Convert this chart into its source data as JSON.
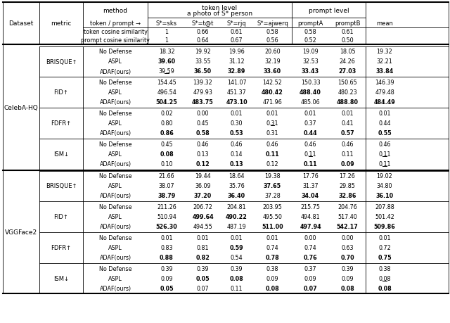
{
  "datasets": [
    {
      "name": "CelebA-HQ",
      "metrics": [
        {
          "name": "BRISQUE↑",
          "rows": [
            {
              "method": "No Defense",
              "values": [
                "18.32",
                "19.92",
                "19.96",
                "20.60",
                "19.09",
                "18.05",
                "19.32"
              ],
              "bold_idx": [],
              "underline_idx": []
            },
            {
              "method": "ASPL",
              "values": [
                "39.60",
                "33.55",
                "31.12",
                "32.19",
                "32.53",
                "24.26",
                "32.21"
              ],
              "bold_idx": [
                0
              ],
              "underline_idx": []
            },
            {
              "method": "ADAF(ours)",
              "values": [
                "39.59",
                "36.50",
                "32.89",
                "33.60",
                "33.43",
                "27.03",
                "33.84"
              ],
              "bold_idx": [
                1,
                2,
                3,
                4,
                5,
                6
              ],
              "underline_idx": [
                0
              ]
            }
          ]
        },
        {
          "name": "FID↑",
          "rows": [
            {
              "method": "No Defense",
              "values": [
                "154.45",
                "139.32",
                "141.07",
                "142.52",
                "150.33",
                "150.65",
                "146.39"
              ],
              "bold_idx": [],
              "underline_idx": []
            },
            {
              "method": "ASPL",
              "values": [
                "496.54",
                "479.93",
                "451.37",
                "480.42",
                "488.40",
                "480.23",
                "479.48"
              ],
              "bold_idx": [
                3,
                4
              ],
              "underline_idx": []
            },
            {
              "method": "ADAF(ours)",
              "values": [
                "504.25",
                "483.75",
                "473.10",
                "471.96",
                "485.06",
                "488.80",
                "484.49"
              ],
              "bold_idx": [
                0,
                1,
                2,
                5,
                6
              ],
              "underline_idx": []
            }
          ]
        },
        {
          "name": "FDFR↑",
          "rows": [
            {
              "method": "No Defense",
              "values": [
                "0.02",
                "0.00",
                "0.01",
                "0.01",
                "0.01",
                "0.01",
                "0.01"
              ],
              "bold_idx": [],
              "underline_idx": []
            },
            {
              "method": "ASPL",
              "values": [
                "0.80",
                "0.45",
                "0.30",
                "0.31",
                "0.37",
                "0.41",
                "0.44"
              ],
              "bold_idx": [],
              "underline_idx": [
                3
              ]
            },
            {
              "method": "ADAF(ours)",
              "values": [
                "0.86",
                "0.58",
                "0.53",
                "0.31",
                "0.44",
                "0.57",
                "0.55"
              ],
              "bold_idx": [
                0,
                1,
                2,
                4,
                5,
                6
              ],
              "underline_idx": []
            }
          ]
        },
        {
          "name": "ISM↓",
          "rows": [
            {
              "method": "No Defense",
              "values": [
                "0.45",
                "0.46",
                "0.46",
                "0.46",
                "0.46",
                "0.46",
                "0.46"
              ],
              "bold_idx": [],
              "underline_idx": []
            },
            {
              "method": "ASPL",
              "values": [
                "0.08",
                "0.13",
                "0.14",
                "0.11",
                "0.11",
                "0.11",
                "0.11"
              ],
              "bold_idx": [
                0,
                3
              ],
              "underline_idx": [
                4,
                6
              ]
            },
            {
              "method": "ADAF(ours)",
              "values": [
                "0.10",
                "0.12",
                "0.13",
                "0.12",
                "0.11",
                "0.09",
                "0.11"
              ],
              "bold_idx": [
                1,
                2,
                4,
                5
              ],
              "underline_idx": [
                6
              ]
            }
          ]
        }
      ]
    },
    {
      "name": "VGGFace2",
      "metrics": [
        {
          "name": "BRISQUE↑",
          "rows": [
            {
              "method": "No Defense",
              "values": [
                "21.66",
                "19.44",
                "18.64",
                "19.38",
                "17.76",
                "17.26",
                "19.02"
              ],
              "bold_idx": [],
              "underline_idx": []
            },
            {
              "method": "ASPL",
              "values": [
                "38.07",
                "36.09",
                "35.76",
                "37.65",
                "31.37",
                "29.85",
                "34.80"
              ],
              "bold_idx": [
                3
              ],
              "underline_idx": []
            },
            {
              "method": "ADAF(ours)",
              "values": [
                "38.79",
                "37.20",
                "36.40",
                "37.28",
                "34.04",
                "32.86",
                "36.10"
              ],
              "bold_idx": [
                0,
                1,
                2,
                4,
                5,
                6
              ],
              "underline_idx": []
            }
          ]
        },
        {
          "name": "FID↑",
          "rows": [
            {
              "method": "No Defense",
              "values": [
                "211.26",
                "206.72",
                "204.81",
                "203.95",
                "215.75",
                "204.76",
                "207.88"
              ],
              "bold_idx": [],
              "underline_idx": []
            },
            {
              "method": "ASPL",
              "values": [
                "510.94",
                "499.64",
                "490.22",
                "495.50",
                "494.81",
                "517.40",
                "501.42"
              ],
              "bold_idx": [
                1,
                2
              ],
              "underline_idx": []
            },
            {
              "method": "ADAF(ours)",
              "values": [
                "526.30",
                "494.55",
                "487.19",
                "511.00",
                "497.94",
                "542.17",
                "509.86"
              ],
              "bold_idx": [
                0,
                3,
                4,
                5,
                6
              ],
              "underline_idx": []
            }
          ]
        },
        {
          "name": "FDFR↑",
          "rows": [
            {
              "method": "No Defense",
              "values": [
                "0.01",
                "0.01",
                "0.01",
                "0.01",
                "0.00",
                "0.00",
                "0.01"
              ],
              "bold_idx": [],
              "underline_idx": []
            },
            {
              "method": "ASPL",
              "values": [
                "0.83",
                "0.81",
                "0.59",
                "0.74",
                "0.74",
                "0.63",
                "0.72"
              ],
              "bold_idx": [
                2
              ],
              "underline_idx": []
            },
            {
              "method": "ADAF(ours)",
              "values": [
                "0.88",
                "0.82",
                "0.54",
                "0.78",
                "0.76",
                "0.70",
                "0.75"
              ],
              "bold_idx": [
                0,
                1,
                3,
                4,
                5,
                6
              ],
              "underline_idx": []
            }
          ]
        },
        {
          "name": "ISM↓",
          "rows": [
            {
              "method": "No Defense",
              "values": [
                "0.39",
                "0.39",
                "0.39",
                "0.38",
                "0.37",
                "0.39",
                "0.38"
              ],
              "bold_idx": [],
              "underline_idx": []
            },
            {
              "method": "ASPL",
              "values": [
                "0.09",
                "0.05",
                "0.08",
                "0.09",
                "0.09",
                "0.09",
                "0.08"
              ],
              "bold_idx": [
                1,
                2
              ],
              "underline_idx": [
                6
              ]
            },
            {
              "method": "ADAF(ours)",
              "values": [
                "0.05",
                "0.07",
                "0.11",
                "0.08",
                "0.07",
                "0.08",
                "0.08"
              ],
              "bold_idx": [
                0,
                3,
                4,
                5,
                6
              ],
              "underline_idx": []
            }
          ]
        }
      ]
    }
  ]
}
